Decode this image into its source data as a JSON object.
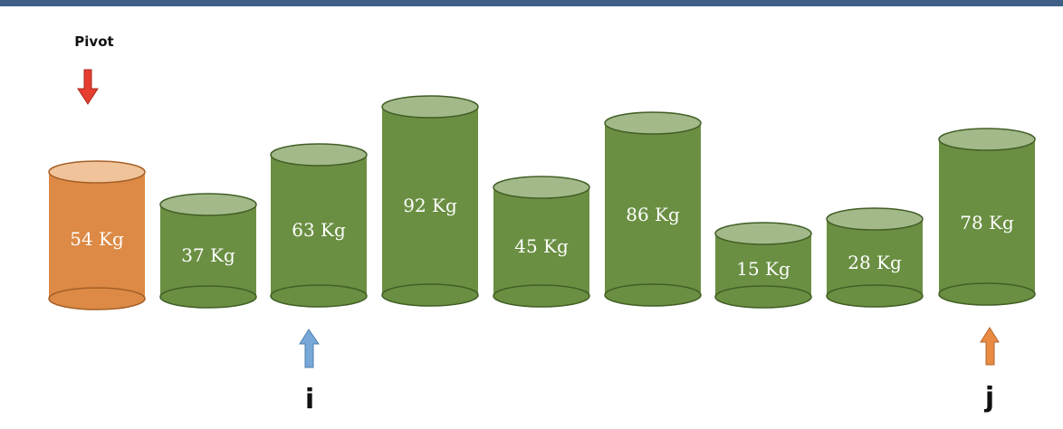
{
  "pivot_label": "Pivot",
  "pointers": {
    "i": "i",
    "j": "j"
  },
  "pivot_index": 0,
  "i_index": 2,
  "j_index": 8,
  "weights": [
    {
      "label": "54 Kg",
      "role": "pivot"
    },
    {
      "label": "37 Kg",
      "role": "element"
    },
    {
      "label": "63 Kg",
      "role": "element"
    },
    {
      "label": "92 Kg",
      "role": "element"
    },
    {
      "label": "45 Kg",
      "role": "element"
    },
    {
      "label": "86 Kg",
      "role": "element"
    },
    {
      "label": "15 Kg",
      "role": "element"
    },
    {
      "label": "28 Kg",
      "role": "element"
    },
    {
      "label": "78 Kg",
      "role": "element"
    }
  ],
  "colors": {
    "header_bar": "#3f5f86",
    "pivot_body": "#dc8a45",
    "pivot_top": "#f0c39a",
    "pivot_edge": "#a66027",
    "element_body": "#6a8f42",
    "element_top": "#a3b98a",
    "element_edge": "#425f26",
    "pivot_arrow": "#e53d2e",
    "i_arrow": "#78a8d8",
    "j_arrow": "#e98b43"
  }
}
